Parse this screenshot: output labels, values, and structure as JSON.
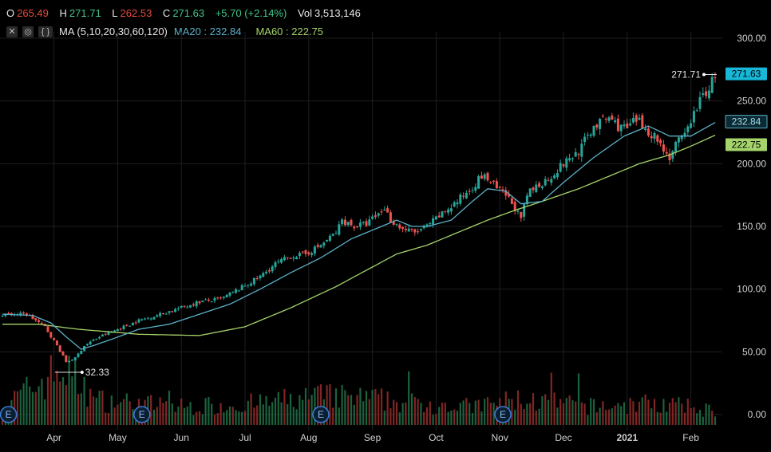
{
  "header": {
    "o_label": "O",
    "o_value": "265.49",
    "h_label": "H",
    "h_value": "271.71",
    "l_label": "L",
    "l_value": "262.53",
    "c_label": "C",
    "c_value": "271.63",
    "change": "+5.70 (+2.14%)",
    "vol_label": "Vol",
    "vol_value": "3,513,146",
    "ma_label": "MA (5,10,20,30,60,120)",
    "ma20_label": "MA20 : 232.84",
    "ma60_label": "MA60 : 222.75",
    "close_icon": "close-icon",
    "settings_icon": "settings-icon",
    "code_icon": "code-icon",
    "close_glyph": "✕",
    "settings_glyph": "◎",
    "code_glyph": "{ }"
  },
  "colors": {
    "up": "#26a69a",
    "down": "#ef5350",
    "ma20": "#5ab0c8",
    "ma60": "#a5d46a",
    "grid": "#1e1e1e",
    "last_price_bg": "#17b7d8"
  },
  "chart_data": {
    "type": "candlestick",
    "y_ticks": [
      "300.00",
      "250.00",
      "200.00",
      "150.00",
      "100.00",
      "50.00",
      "0.00"
    ],
    "y_tick_values": [
      300,
      250,
      200,
      150,
      100,
      50,
      0
    ],
    "ylim": [
      0,
      300
    ],
    "x_labels": [
      "Apr",
      "May",
      "Jun",
      "Jul",
      "Aug",
      "Sep",
      "Oct",
      "Nov",
      "Dec",
      "2021",
      "Feb"
    ],
    "last_price_tag": "271.63",
    "ma20_tag": "232.84",
    "ma60_tag": "222.75",
    "high_annotation": "271.71",
    "low_annotation": "32.33",
    "earnings_marker": "E",
    "close_anchors": [
      [
        0,
        80
      ],
      [
        8,
        80
      ],
      [
        14,
        70
      ],
      [
        18,
        55
      ],
      [
        21,
        42
      ],
      [
        24,
        45
      ],
      [
        27,
        55
      ],
      [
        32,
        62
      ],
      [
        38,
        68
      ],
      [
        45,
        75
      ],
      [
        52,
        80
      ],
      [
        60,
        86
      ],
      [
        65,
        90
      ],
      [
        72,
        92
      ],
      [
        78,
        100
      ],
      [
        85,
        110
      ],
      [
        90,
        120
      ],
      [
        95,
        126
      ],
      [
        100,
        128
      ],
      [
        105,
        135
      ],
      [
        110,
        145
      ],
      [
        112,
        155
      ],
      [
        116,
        150
      ],
      [
        120,
        152
      ],
      [
        124,
        160
      ],
      [
        126,
        165
      ],
      [
        128,
        155
      ],
      [
        132,
        148
      ],
      [
        136,
        145
      ],
      [
        140,
        150
      ],
      [
        145,
        160
      ],
      [
        150,
        170
      ],
      [
        155,
        182
      ],
      [
        158,
        190
      ],
      [
        160,
        188
      ],
      [
        163,
        180
      ],
      [
        166,
        175
      ],
      [
        169,
        165
      ],
      [
        171,
        155
      ],
      [
        173,
        175
      ],
      [
        176,
        182
      ],
      [
        180,
        188
      ],
      [
        185,
        200
      ],
      [
        190,
        210
      ],
      [
        195,
        230
      ],
      [
        200,
        237
      ],
      [
        203,
        230
      ],
      [
        206,
        228
      ],
      [
        209,
        235
      ],
      [
        212,
        228
      ],
      [
        215,
        222
      ],
      [
        218,
        212
      ],
      [
        220,
        205
      ],
      [
        222,
        215
      ],
      [
        225,
        222
      ],
      [
        227,
        235
      ],
      [
        229,
        245
      ],
      [
        231,
        255
      ],
      [
        233,
        260
      ],
      [
        235,
        271.63
      ]
    ],
    "ma20_anchors": [
      [
        0,
        80
      ],
      [
        10,
        79
      ],
      [
        16,
        73
      ],
      [
        21,
        62
      ],
      [
        26,
        52
      ],
      [
        30,
        55
      ],
      [
        36,
        60
      ],
      [
        45,
        68
      ],
      [
        55,
        72
      ],
      [
        65,
        80
      ],
      [
        75,
        88
      ],
      [
        85,
        100
      ],
      [
        95,
        113
      ],
      [
        105,
        125
      ],
      [
        115,
        140
      ],
      [
        125,
        150
      ],
      [
        130,
        155
      ],
      [
        135,
        150
      ],
      [
        140,
        150
      ],
      [
        148,
        155
      ],
      [
        155,
        170
      ],
      [
        160,
        180
      ],
      [
        166,
        178
      ],
      [
        171,
        168
      ],
      [
        178,
        170
      ],
      [
        185,
        185
      ],
      [
        195,
        205
      ],
      [
        205,
        222
      ],
      [
        213,
        230
      ],
      [
        220,
        222
      ],
      [
        227,
        222
      ],
      [
        235,
        232.84
      ]
    ],
    "ma60_anchors": [
      [
        0,
        72
      ],
      [
        12,
        72
      ],
      [
        25,
        68
      ],
      [
        45,
        64
      ],
      [
        65,
        63
      ],
      [
        80,
        70
      ],
      [
        95,
        85
      ],
      [
        110,
        102
      ],
      [
        120,
        115
      ],
      [
        130,
        128
      ],
      [
        140,
        135
      ],
      [
        150,
        145
      ],
      [
        160,
        155
      ],
      [
        168,
        162
      ],
      [
        178,
        170
      ],
      [
        190,
        180
      ],
      [
        200,
        190
      ],
      [
        210,
        200
      ],
      [
        220,
        207
      ],
      [
        228,
        215
      ],
      [
        235,
        222.75
      ]
    ],
    "volume_anchors": [
      [
        0,
        0.25
      ],
      [
        20,
        0.8
      ],
      [
        30,
        0.35
      ],
      [
        60,
        0.25
      ],
      [
        85,
        0.3
      ],
      [
        105,
        0.4
      ],
      [
        125,
        0.35
      ],
      [
        135,
        0.3
      ],
      [
        155,
        0.25
      ],
      [
        170,
        0.35
      ],
      [
        195,
        0.25
      ],
      [
        215,
        0.3
      ],
      [
        235,
        0.2
      ]
    ],
    "earnings_indices": [
      2,
      46,
      105,
      165
    ]
  }
}
